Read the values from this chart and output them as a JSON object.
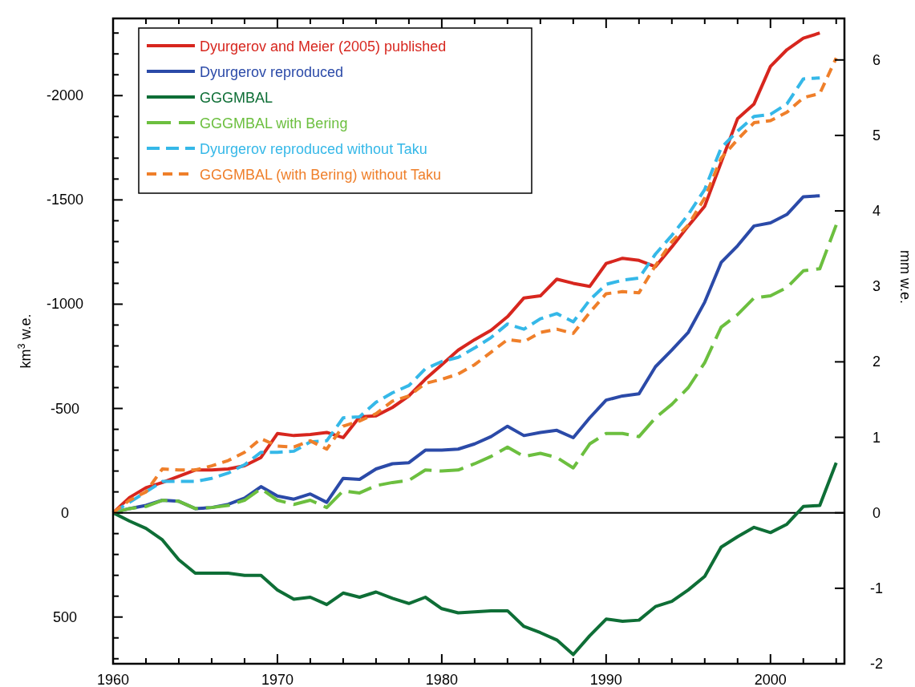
{
  "chart_data": {
    "type": "line",
    "xlabel": null,
    "ylabel": "km$^{3}$ w.e.",
    "y2label": "mm w.e.",
    "x": [
      1960,
      1961,
      1962,
      1963,
      1964,
      1965,
      1966,
      1967,
      1968,
      1969,
      1970,
      1971,
      1972,
      1973,
      1974,
      1975,
      1976,
      1977,
      1978,
      1979,
      1980,
      1981,
      1982,
      1983,
      1984,
      1985,
      1986,
      1987,
      1988,
      1989,
      1990,
      1991,
      1992,
      1993,
      1994,
      1995,
      1996,
      1997,
      1998,
      1999,
      2000,
      2001,
      2002,
      2003,
      2004
    ],
    "xlim": [
      1960,
      2004.5
    ],
    "xticks": [
      1960,
      {
        "value": 1962,
        "label": null
      },
      {
        "value": 1964,
        "label": null
      },
      {
        "value": 1966,
        "label": null
      },
      {
        "value": 1968,
        "label": null
      },
      1970,
      {
        "value": 1972,
        "label": null
      },
      {
        "value": 1974,
        "label": null
      },
      {
        "value": 1976,
        "label": null
      },
      {
        "value": 1978,
        "label": null
      },
      1980,
      {
        "value": 1982,
        "label": null
      },
      {
        "value": 1984,
        "label": null
      },
      {
        "value": 1986,
        "label": null
      },
      {
        "value": 1988,
        "label": null
      },
      1990,
      {
        "value": 1992,
        "label": null
      },
      {
        "value": 1994,
        "label": null
      },
      {
        "value": 1996,
        "label": null
      },
      {
        "value": 1998,
        "label": null
      },
      2000,
      {
        "value": 2002,
        "label": null
      },
      {
        "value": 2004,
        "label": null
      }
    ],
    "ylim": [
      724,
      -2370
    ],
    "yticks": [
      -2000,
      -1500,
      -1000,
      -500,
      0,
      500,
      {
        "value": -2300,
        "label": null
      },
      {
        "value": -2200,
        "label": null
      },
      {
        "value": -2100,
        "label": null
      },
      {
        "value": -1900,
        "label": null
      },
      {
        "value": -1800,
        "label": null
      },
      {
        "value": -1700,
        "label": null
      },
      {
        "value": -1600,
        "label": null
      },
      {
        "value": -1400,
        "label": null
      },
      {
        "value": -1300,
        "label": null
      },
      {
        "value": -1200,
        "label": null
      },
      {
        "value": -1100,
        "label": null
      },
      {
        "value": -900,
        "label": null
      },
      {
        "value": -800,
        "label": null
      },
      {
        "value": -700,
        "label": null
      },
      {
        "value": -600,
        "label": null
      },
      {
        "value": -400,
        "label": null
      },
      {
        "value": -300,
        "label": null
      },
      {
        "value": -200,
        "label": null
      },
      {
        "value": -100,
        "label": null
      },
      {
        "value": 100,
        "label": null
      },
      {
        "value": 200,
        "label": null
      },
      {
        "value": 300,
        "label": null
      },
      {
        "value": 400,
        "label": null
      },
      {
        "value": 600,
        "label": null
      },
      {
        "value": 700,
        "label": null
      }
    ],
    "y2lim": [
      -2.0,
      6.55
    ],
    "y2ticks": [
      -2,
      -1,
      0,
      1,
      2,
      3,
      4,
      5,
      6
    ],
    "grid": false,
    "legend": "top left",
    "marker": "none",
    "ref_lines": [
      {
        "axis": "y",
        "value": 0,
        "color": "#000000",
        "line_style": "solid"
      }
    ],
    "series": [
      {
        "name": "Dyurgerov and Meier (2005) published",
        "color": "#d7261e",
        "line_style": "solid",
        "values": [
          0,
          -73,
          -120,
          -145,
          -175,
          -205,
          -205,
          -210,
          -225,
          -265,
          -380,
          -370,
          -375,
          -385,
          -360,
          -460,
          -465,
          -505,
          -560,
          -640,
          -710,
          -780,
          -830,
          -875,
          -940,
          -1030,
          -1040,
          -1120,
          -1100,
          -1085,
          -1195,
          -1220,
          -1210,
          -1180,
          -1275,
          -1375,
          -1470,
          -1680,
          -1890,
          -1960,
          -2140,
          -2220,
          -2275,
          -2300,
          null
        ]
      },
      {
        "name": "Dyurgerov reproduced",
        "color": "#2b4aa8",
        "line_style": "solid",
        "values": [
          0,
          -20,
          -35,
          -60,
          -55,
          -20,
          -25,
          -40,
          -70,
          -125,
          -80,
          -65,
          -90,
          -50,
          -165,
          -160,
          -210,
          -235,
          -240,
          -300,
          -300,
          -305,
          -330,
          -365,
          -415,
          -370,
          -385,
          -395,
          -360,
          -455,
          -540,
          -560,
          -570,
          -700,
          -780,
          -865,
          -1010,
          -1200,
          -1280,
          -1375,
          -1390,
          -1430,
          -1515,
          -1520,
          null
        ]
      },
      {
        "name": "GGGMBAL",
        "color": "#0e6e36",
        "line_style": "solid",
        "values": [
          0,
          40,
          75,
          130,
          225,
          290,
          290,
          290,
          300,
          300,
          370,
          415,
          405,
          440,
          385,
          405,
          380,
          410,
          435,
          405,
          460,
          480,
          475,
          470,
          470,
          545,
          575,
          610,
          680,
          590,
          510,
          520,
          515,
          450,
          425,
          370,
          305,
          165,
          115,
          70,
          95,
          55,
          -30,
          -35,
          -240
        ]
      },
      {
        "name": "GGGMBAL with Bering",
        "color": "#6cbf3f",
        "line_style": "dashed",
        "values": [
          0,
          -20,
          -30,
          -60,
          -55,
          -20,
          -25,
          -35,
          -60,
          -115,
          -60,
          -40,
          -60,
          -25,
          -105,
          -95,
          -130,
          -145,
          -155,
          -205,
          -200,
          -205,
          -235,
          -270,
          -315,
          -270,
          -285,
          -265,
          -215,
          -330,
          -380,
          -380,
          -365,
          -455,
          -520,
          -600,
          -720,
          -890,
          -950,
          -1030,
          -1040,
          -1080,
          -1160,
          -1170,
          -1380
        ]
      },
      {
        "name": "Dyurgerov reproduced without Taku",
        "color": "#35b8e8",
        "line_style": "dashed",
        "values": [
          0,
          -50,
          -100,
          -150,
          -150,
          -150,
          -165,
          -190,
          -230,
          -290,
          -290,
          -295,
          -340,
          -345,
          -455,
          -460,
          -530,
          -575,
          -610,
          -690,
          -725,
          -745,
          -790,
          -840,
          -905,
          -880,
          -930,
          -955,
          -915,
          -1020,
          -1095,
          -1115,
          -1125,
          -1240,
          -1330,
          -1430,
          -1550,
          -1750,
          -1830,
          -1900,
          -1910,
          -1960,
          -2080,
          -2085,
          null
        ]
      },
      {
        "name": "GGGMBAL (with Bering) without Taku",
        "color": "#ef7f2a",
        "line_style": "dashed",
        "values": [
          0,
          -60,
          -100,
          -210,
          -205,
          -205,
          -225,
          -250,
          -290,
          -355,
          -320,
          -315,
          -345,
          -305,
          -415,
          -440,
          -475,
          -535,
          -560,
          -620,
          -640,
          -665,
          -710,
          -770,
          -830,
          -820,
          -865,
          -880,
          -860,
          -960,
          -1050,
          -1060,
          -1055,
          -1185,
          -1300,
          -1380,
          -1510,
          -1700,
          -1790,
          -1870,
          -1880,
          -1920,
          -1990,
          -2010,
          -2180
        ]
      }
    ]
  }
}
